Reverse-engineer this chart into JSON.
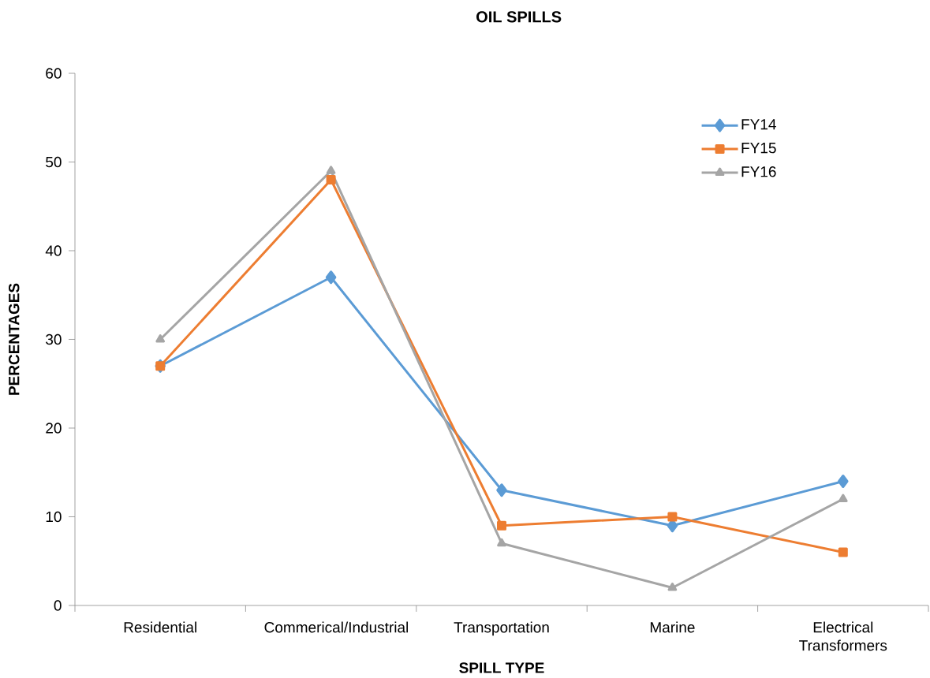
{
  "chart_data": {
    "type": "line",
    "title": "OIL SPILLS",
    "xlabel": "SPILL TYPE",
    "ylabel": "PERCENTAGES",
    "categories": [
      "Residential",
      "Commerical/Industrial",
      "Transportation",
      "Marine",
      "Electrical Transformers"
    ],
    "series": [
      {
        "name": "FY14",
        "color": "#5b9bd5",
        "marker": "diamond",
        "values": [
          27,
          37,
          13,
          9,
          14
        ]
      },
      {
        "name": "FY15",
        "color": "#ed7d31",
        "marker": "square",
        "values": [
          27,
          48,
          9,
          10,
          6
        ]
      },
      {
        "name": "FY16",
        "color": "#a5a5a5",
        "marker": "triangle",
        "values": [
          30,
          49,
          7,
          2,
          12
        ]
      }
    ],
    "ylim": [
      0,
      60
    ],
    "yticks": [
      0,
      10,
      20,
      30,
      40,
      50,
      60
    ],
    "grid": false,
    "legend": "top right",
    "line_style": "solid"
  }
}
